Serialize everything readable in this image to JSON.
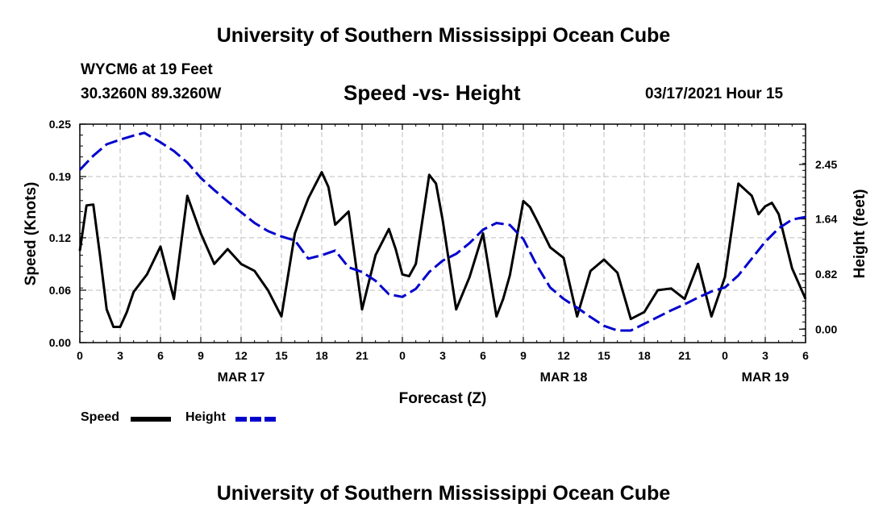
{
  "header": {
    "title": "University of Southern Mississippi Ocean Cube",
    "station": "WYCM6 at 19 Feet",
    "coords": "30.3260N 89.3260W",
    "subtitle": "Speed -vs- Height",
    "datetime": "03/17/2021 Hour 15"
  },
  "footer": {
    "title": "University of Southern Mississippi Ocean Cube"
  },
  "legend": {
    "speed_label": "Speed",
    "height_label": "Height"
  },
  "chart_data": {
    "type": "line",
    "xlabel": "Forecast (Z)",
    "ylabel_left": "Speed (Knots)",
    "ylabel_right": "Height (feet)",
    "x_range_hours": [
      0,
      54
    ],
    "x_ticks": [
      {
        "h": 0,
        "label": "0"
      },
      {
        "h": 3,
        "label": "3"
      },
      {
        "h": 6,
        "label": "6"
      },
      {
        "h": 9,
        "label": "9"
      },
      {
        "h": 12,
        "label": "12"
      },
      {
        "h": 15,
        "label": "15"
      },
      {
        "h": 18,
        "label": "18"
      },
      {
        "h": 21,
        "label": "21"
      },
      {
        "h": 24,
        "label": "0"
      },
      {
        "h": 27,
        "label": "3"
      },
      {
        "h": 30,
        "label": "6"
      },
      {
        "h": 33,
        "label": "9"
      },
      {
        "h": 36,
        "label": "12"
      },
      {
        "h": 39,
        "label": "15"
      },
      {
        "h": 42,
        "label": "18"
      },
      {
        "h": 45,
        "label": "21"
      },
      {
        "h": 48,
        "label": "0"
      },
      {
        "h": 51,
        "label": "3"
      },
      {
        "h": 54,
        "label": "6"
      }
    ],
    "date_labels": [
      {
        "h": 12,
        "label": "MAR 17"
      },
      {
        "h": 36,
        "label": "MAR 18"
      },
      {
        "h": 51,
        "label": "MAR 19"
      }
    ],
    "y_left": {
      "range": [
        0,
        0.25
      ],
      "ticks": [
        0.0,
        0.06,
        0.12,
        0.19,
        0.25
      ],
      "tick_labels": [
        "0.00",
        "0.06",
        "0.12",
        "0.19",
        "0.25"
      ]
    },
    "y_right": {
      "range": [
        -0.2,
        3.05
      ],
      "ticks": [
        0.0,
        0.82,
        1.64,
        2.45
      ],
      "tick_labels": [
        "0.00",
        "0.82",
        "1.64",
        "2.45"
      ]
    },
    "series": [
      {
        "name": "Speed",
        "axis": "left",
        "color": "#000000",
        "style": "solid",
        "x": [
          0,
          0.5,
          1,
          1.5,
          2,
          2.5,
          3,
          3.5,
          4,
          5,
          6,
          7,
          8,
          9,
          10,
          11,
          12,
          13,
          14,
          15,
          16,
          17,
          18,
          18.5,
          19,
          20,
          21,
          22,
          23,
          23.5,
          24,
          24.5,
          25,
          26,
          26.5,
          27,
          28,
          29,
          30,
          31,
          31.5,
          32,
          33,
          33.5,
          34,
          35,
          36,
          37,
          38,
          39,
          40,
          41,
          42,
          43,
          44,
          45,
          46,
          47,
          48,
          49,
          50,
          50.5,
          51,
          51.5,
          52,
          53,
          54
        ],
        "y": [
          0.105,
          0.157,
          0.158,
          0.1,
          0.038,
          0.018,
          0.018,
          0.035,
          0.058,
          0.078,
          0.11,
          0.05,
          0.168,
          0.125,
          0.09,
          0.107,
          0.09,
          0.082,
          0.06,
          0.03,
          0.125,
          0.165,
          0.195,
          0.178,
          0.135,
          0.15,
          0.038,
          0.1,
          0.13,
          0.107,
          0.078,
          0.076,
          0.09,
          0.192,
          0.182,
          0.14,
          0.038,
          0.075,
          0.125,
          0.03,
          0.05,
          0.077,
          0.162,
          0.155,
          0.14,
          0.109,
          0.097,
          0.03,
          0.082,
          0.095,
          0.08,
          0.027,
          0.035,
          0.06,
          0.062,
          0.05,
          0.09,
          0.03,
          0.075,
          0.182,
          0.168,
          0.147,
          0.156,
          0.16,
          0.147,
          0.085,
          0.05
        ]
      },
      {
        "name": "Height",
        "axis": "right",
        "color": "#0000cc",
        "style": "dashed",
        "x": [
          0,
          1,
          2,
          3,
          4,
          4.8,
          6,
          7,
          8,
          9,
          10,
          11,
          12,
          13,
          14,
          15,
          16,
          17,
          18,
          19,
          20,
          21,
          22,
          23,
          24,
          25,
          26,
          27,
          28,
          29,
          30,
          31,
          32,
          33,
          34,
          35,
          36,
          37,
          38,
          39,
          40,
          41,
          42,
          43,
          44,
          45,
          46,
          47,
          48,
          49,
          50,
          51,
          52,
          53,
          54
        ],
        "y": [
          2.37,
          2.58,
          2.75,
          2.82,
          2.88,
          2.92,
          2.78,
          2.65,
          2.48,
          2.25,
          2.07,
          1.9,
          1.74,
          1.58,
          1.46,
          1.38,
          1.32,
          1.05,
          1.1,
          1.17,
          0.92,
          0.85,
          0.72,
          0.52,
          0.48,
          0.6,
          0.85,
          1.02,
          1.12,
          1.28,
          1.48,
          1.58,
          1.55,
          1.34,
          0.95,
          0.62,
          0.45,
          0.32,
          0.18,
          0.05,
          -0.02,
          -0.02,
          0.08,
          0.18,
          0.28,
          0.37,
          0.47,
          0.56,
          0.62,
          0.8,
          1.05,
          1.3,
          1.5,
          1.63,
          1.67
        ]
      }
    ]
  }
}
